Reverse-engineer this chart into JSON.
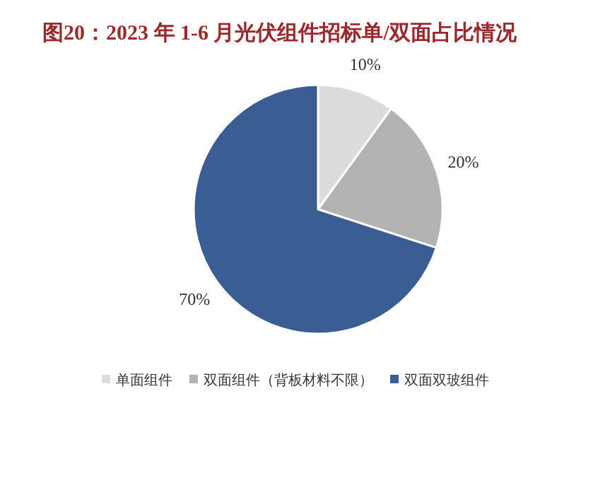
{
  "chart_data": {
    "type": "pie",
    "title": "图20：2023 年 1-6 月光伏组件招标单/双面占比情况",
    "categories": [
      "单面组件",
      "双面组件（背板材料不限）",
      "双面双玻组件"
    ],
    "values": [
      10,
      20,
      70
    ],
    "colors": [
      "#dcdcdc",
      "#b3b3b3",
      "#3a5e93"
    ],
    "value_labels": [
      "10%",
      "20%",
      "70%"
    ],
    "legend": "bottom"
  }
}
